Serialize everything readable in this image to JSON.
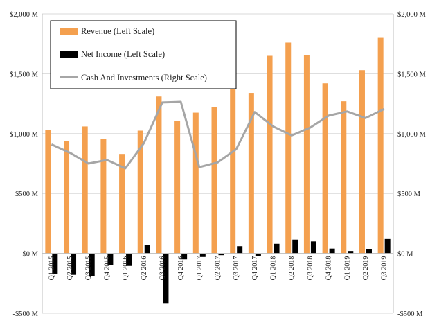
{
  "chart_data": {
    "type": "bar",
    "categories": [
      "Q1 2015",
      "Q2 2015",
      "Q3 2015",
      "Q4 2015",
      "Q1 2016",
      "Q2 2016",
      "Q3 2016",
      "Q4 2016",
      "Q1 2017",
      "Q2 2017",
      "Q3 2017",
      "Q4 2017",
      "Q1 2018",
      "Q2 2018",
      "Q3 2018",
      "Q4 2018",
      "Q1 2019",
      "Q2 2019",
      "Q3 2019"
    ],
    "series": [
      {
        "name": "Revenue (Left Scale)",
        "kind": "bar",
        "axis": "left",
        "color": "#F4A04F",
        "values": [
          1030,
          940,
          1060,
          955,
          830,
          1025,
          1310,
          1105,
          1175,
          1220,
          1580,
          1340,
          1650,
          1760,
          1655,
          1420,
          1270,
          1530,
          1800
        ]
      },
      {
        "name": "Net Income (Left Scale)",
        "kind": "bar",
        "axis": "left",
        "color": "#000000",
        "values": [
          -170,
          -180,
          -190,
          -95,
          -105,
          70,
          -415,
          -50,
          -30,
          -15,
          60,
          -20,
          80,
          115,
          100,
          40,
          20,
          35,
          120
        ]
      },
      {
        "name": "Cash And Investments (Right Scale)",
        "kind": "line",
        "axis": "right",
        "color": "#A6A6A6",
        "values": [
          910,
          840,
          750,
          780,
          710,
          920,
          1260,
          1265,
          720,
          760,
          870,
          1180,
          1060,
          985,
          1050,
          1150,
          1185,
          1130,
          1205
        ]
      }
    ],
    "y_left": {
      "min": -500,
      "max": 2000,
      "ticks": [
        -500,
        0,
        500,
        1000,
        1500,
        2000
      ],
      "tick_labels": [
        "-$500 M",
        "$0 M",
        "$500 M",
        "$1,000 M",
        "$1,500 M",
        "$2,000 M"
      ]
    },
    "y_right": {
      "min": -500,
      "max": 2000,
      "ticks": [
        -500,
        0,
        500,
        1000,
        1500,
        2000
      ],
      "tick_labels": [
        "-$500 M",
        "$0 M",
        "$500 M",
        "$1,000 M",
        "$1,500 M",
        "$2,000 M"
      ]
    },
    "title": "",
    "xlabel": "",
    "ylabel": "",
    "grid": true,
    "legend_position": "top-left"
  }
}
